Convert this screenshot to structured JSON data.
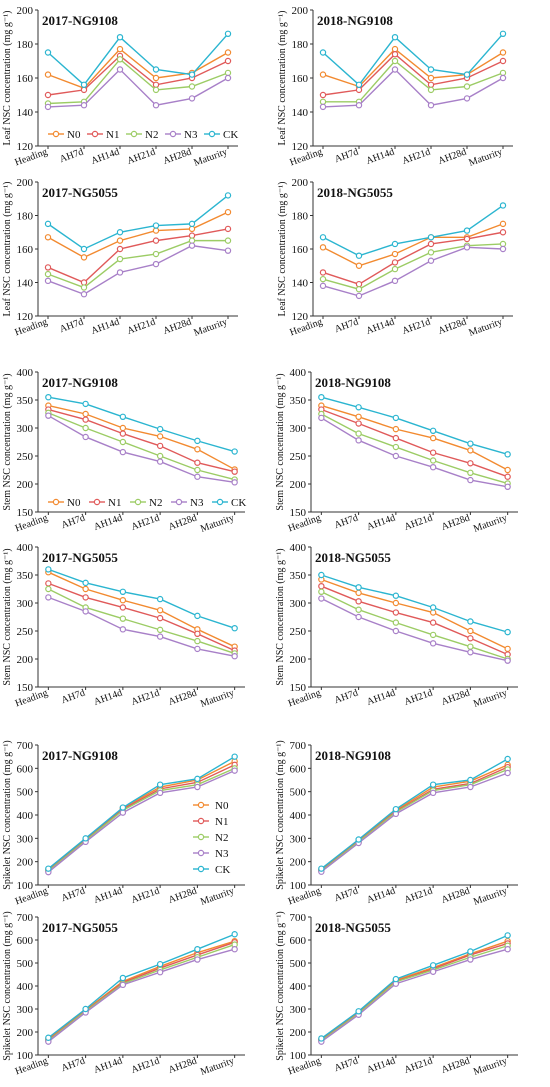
{
  "series_names": [
    "N0",
    "N1",
    "N2",
    "N3",
    "CK"
  ],
  "colors": {
    "N0": "#f28a30",
    "N1": "#e05a5a",
    "N2": "#9ccc65",
    "N3": "#a880c8",
    "CK": "#2bb5d0"
  },
  "categories": [
    "Heading",
    "AH7d",
    "AH14d",
    "AH21d",
    "AH28d",
    "Maturity"
  ],
  "chart_data": [
    {
      "type": "line",
      "title": "2017-NG9108",
      "ylabel": "Leaf NSC concentration (mg g⁻¹)",
      "ylim": [
        120,
        200
      ],
      "yticks": [
        120,
        140,
        160,
        180,
        200
      ],
      "legend": "bottom-left",
      "series": [
        {
          "name": "N0",
          "values": [
            162,
            154,
            177,
            160,
            163,
            175
          ]
        },
        {
          "name": "N1",
          "values": [
            150,
            153,
            173,
            156,
            160,
            170
          ]
        },
        {
          "name": "N2",
          "values": [
            145,
            146,
            171,
            153,
            155,
            163
          ]
        },
        {
          "name": "N3",
          "values": [
            143,
            144,
            165,
            144,
            148,
            160
          ]
        },
        {
          "name": "CK",
          "values": [
            175,
            156,
            184,
            165,
            162,
            186
          ]
        }
      ]
    },
    {
      "type": "line",
      "title": "2018-NG9108",
      "ylabel": "Leaf NSC concentration (mg g⁻¹)",
      "ylim": [
        120,
        200
      ],
      "yticks": [
        120,
        140,
        160,
        180,
        200
      ],
      "series": [
        {
          "name": "N0",
          "values": [
            162,
            155,
            177,
            160,
            162,
            175
          ]
        },
        {
          "name": "N1",
          "values": [
            150,
            153,
            174,
            156,
            160,
            170
          ]
        },
        {
          "name": "N2",
          "values": [
            146,
            146,
            170,
            153,
            155,
            163
          ]
        },
        {
          "name": "N3",
          "values": [
            143,
            144,
            165,
            144,
            148,
            160
          ]
        },
        {
          "name": "CK",
          "values": [
            175,
            156,
            184,
            165,
            162,
            186
          ]
        }
      ]
    },
    {
      "type": "line",
      "title": "2017-NG5055",
      "ylabel": "Leaf NSC concentration (mg g⁻¹)",
      "ylim": [
        120,
        200
      ],
      "yticks": [
        120,
        140,
        160,
        180,
        200
      ],
      "series": [
        {
          "name": "N0",
          "values": [
            167,
            155,
            165,
            171,
            172,
            182
          ]
        },
        {
          "name": "N1",
          "values": [
            149,
            140,
            160,
            165,
            168,
            172
          ]
        },
        {
          "name": "N2",
          "values": [
            145,
            137,
            154,
            157,
            165,
            165
          ]
        },
        {
          "name": "N3",
          "values": [
            141,
            133,
            146,
            151,
            162,
            159
          ]
        },
        {
          "name": "CK",
          "values": [
            175,
            160,
            170,
            174,
            175,
            192
          ]
        }
      ]
    },
    {
      "type": "line",
      "title": "2018-NG5055",
      "ylabel": "Leaf NSC concentration (mg g⁻¹)",
      "ylim": [
        120,
        200
      ],
      "yticks": [
        120,
        140,
        160,
        180,
        200
      ],
      "series": [
        {
          "name": "N0",
          "values": [
            161,
            150,
            157,
            167,
            167,
            175
          ]
        },
        {
          "name": "N1",
          "values": [
            146,
            139,
            152,
            163,
            166,
            170
          ]
        },
        {
          "name": "N2",
          "values": [
            142,
            136,
            148,
            158,
            162,
            163
          ]
        },
        {
          "name": "N3",
          "values": [
            138,
            132,
            141,
            153,
            161,
            160
          ]
        },
        {
          "name": "CK",
          "values": [
            167,
            156,
            163,
            167,
            171,
            186
          ]
        }
      ]
    },
    {
      "type": "line",
      "title": "2017-NG9108",
      "ylabel": "Stem NSC concentration (mg g⁻¹)",
      "ylim": [
        150,
        400
      ],
      "yticks": [
        150,
        200,
        250,
        300,
        350,
        400
      ],
      "legend": "bottom",
      "series": [
        {
          "name": "N0",
          "values": [
            340,
            325,
            300,
            285,
            262,
            226
          ]
        },
        {
          "name": "N1",
          "values": [
            333,
            315,
            290,
            268,
            238,
            222
          ]
        },
        {
          "name": "N2",
          "values": [
            327,
            300,
            275,
            250,
            225,
            208
          ]
        },
        {
          "name": "N3",
          "values": [
            322,
            284,
            257,
            240,
            213,
            203
          ]
        },
        {
          "name": "CK",
          "values": [
            355,
            343,
            320,
            298,
            277,
            258
          ]
        }
      ]
    },
    {
      "type": "line",
      "title": "2018-NG9108",
      "ylabel": "Stem NSC concentration (mg g⁻¹)",
      "ylim": [
        150,
        400
      ],
      "yticks": [
        150,
        200,
        250,
        300,
        350,
        400
      ],
      "series": [
        {
          "name": "N0",
          "values": [
            340,
            320,
            298,
            282,
            260,
            225
          ]
        },
        {
          "name": "N1",
          "values": [
            333,
            308,
            282,
            256,
            237,
            213
          ]
        },
        {
          "name": "N2",
          "values": [
            325,
            290,
            266,
            242,
            220,
            201
          ]
        },
        {
          "name": "N3",
          "values": [
            318,
            278,
            250,
            230,
            207,
            195
          ]
        },
        {
          "name": "CK",
          "values": [
            355,
            337,
            318,
            295,
            272,
            253
          ]
        }
      ]
    },
    {
      "type": "line",
      "title": "2017-NG5055",
      "ylabel": "Stem NSC concentration (mg g⁻¹)",
      "ylim": [
        150,
        400
      ],
      "yticks": [
        150,
        200,
        250,
        300,
        350,
        400
      ],
      "series": [
        {
          "name": "N0",
          "values": [
            355,
            325,
            305,
            287,
            253,
            222
          ]
        },
        {
          "name": "N1",
          "values": [
            335,
            310,
            292,
            273,
            245,
            215
          ]
        },
        {
          "name": "N2",
          "values": [
            325,
            292,
            272,
            252,
            232,
            210
          ]
        },
        {
          "name": "N3",
          "values": [
            310,
            285,
            253,
            240,
            218,
            205
          ]
        },
        {
          "name": "CK",
          "values": [
            360,
            336,
            320,
            307,
            277,
            255
          ]
        }
      ]
    },
    {
      "type": "line",
      "title": "2018-NG5055",
      "ylabel": "Stem NSC concentration (mg g⁻¹)",
      "ylim": [
        150,
        400
      ],
      "yticks": [
        150,
        200,
        250,
        300,
        350,
        400
      ],
      "series": [
        {
          "name": "N0",
          "values": [
            342,
            318,
            300,
            283,
            250,
            218
          ]
        },
        {
          "name": "N1",
          "values": [
            330,
            303,
            283,
            265,
            237,
            208
          ]
        },
        {
          "name": "N2",
          "values": [
            320,
            288,
            265,
            243,
            222,
            200
          ]
        },
        {
          "name": "N3",
          "values": [
            308,
            275,
            250,
            228,
            212,
            197
          ]
        },
        {
          "name": "CK",
          "values": [
            350,
            328,
            313,
            292,
            267,
            248
          ]
        }
      ]
    },
    {
      "type": "line",
      "title": "2017-NG9108",
      "ylabel": "Spikelet NSC concentration (mg g⁻¹)",
      "ylim": [
        100,
        700
      ],
      "yticks": [
        100,
        200,
        300,
        400,
        500,
        600,
        700
      ],
      "legend": "right",
      "series": [
        {
          "name": "N0",
          "values": [
            165,
            295,
            430,
            520,
            550,
            630
          ]
        },
        {
          "name": "N1",
          "values": [
            163,
            293,
            425,
            512,
            540,
            615
          ]
        },
        {
          "name": "N2",
          "values": [
            160,
            290,
            420,
            505,
            530,
            600
          ]
        },
        {
          "name": "N3",
          "values": [
            155,
            285,
            410,
            495,
            520,
            590
          ]
        },
        {
          "name": "CK",
          "values": [
            170,
            300,
            432,
            530,
            555,
            650
          ]
        }
      ]
    },
    {
      "type": "line",
      "title": "2018-NG9108",
      "ylabel": "Spikelet NSC concentration (mg g⁻¹)",
      "ylim": [
        100,
        700
      ],
      "yticks": [
        100,
        200,
        300,
        400,
        500,
        600,
        700
      ],
      "series": [
        {
          "name": "N0",
          "values": [
            165,
            290,
            420,
            520,
            545,
            615
          ]
        },
        {
          "name": "N1",
          "values": [
            162,
            288,
            415,
            510,
            535,
            605
          ]
        },
        {
          "name": "N2",
          "values": [
            160,
            285,
            412,
            505,
            530,
            595
          ]
        },
        {
          "name": "N3",
          "values": [
            157,
            280,
            405,
            495,
            520,
            580
          ]
        },
        {
          "name": "CK",
          "values": [
            170,
            295,
            425,
            530,
            550,
            640
          ]
        }
      ]
    },
    {
      "type": "line",
      "title": "2017-NG5055",
      "ylabel": "Spikelet NSC concentration (mg g⁻¹)",
      "ylim": [
        100,
        700
      ],
      "yticks": [
        100,
        200,
        300,
        400,
        500,
        600,
        700
      ],
      "series": [
        {
          "name": "N0",
          "values": [
            170,
            295,
            420,
            485,
            545,
            595
          ]
        },
        {
          "name": "N1",
          "values": [
            165,
            292,
            415,
            478,
            535,
            590
          ]
        },
        {
          "name": "N2",
          "values": [
            162,
            290,
            410,
            470,
            525,
            580
          ]
        },
        {
          "name": "N3",
          "values": [
            158,
            285,
            405,
            460,
            515,
            560
          ]
        },
        {
          "name": "CK",
          "values": [
            175,
            300,
            435,
            495,
            560,
            625
          ]
        }
      ]
    },
    {
      "type": "line",
      "title": "2018-NG5055",
      "ylabel": "Spikelet NSC concentration (mg g⁻¹)",
      "ylim": [
        100,
        700
      ],
      "yticks": [
        100,
        200,
        300,
        400,
        500,
        600,
        700
      ],
      "series": [
        {
          "name": "N0",
          "values": [
            168,
            285,
            425,
            480,
            540,
            595
          ]
        },
        {
          "name": "N1",
          "values": [
            165,
            282,
            420,
            475,
            535,
            585
          ]
        },
        {
          "name": "N2",
          "values": [
            162,
            280,
            418,
            470,
            525,
            575
          ]
        },
        {
          "name": "N3",
          "values": [
            158,
            275,
            410,
            462,
            515,
            560
          ]
        },
        {
          "name": "CK",
          "values": [
            172,
            290,
            430,
            490,
            550,
            620
          ]
        }
      ]
    }
  ]
}
